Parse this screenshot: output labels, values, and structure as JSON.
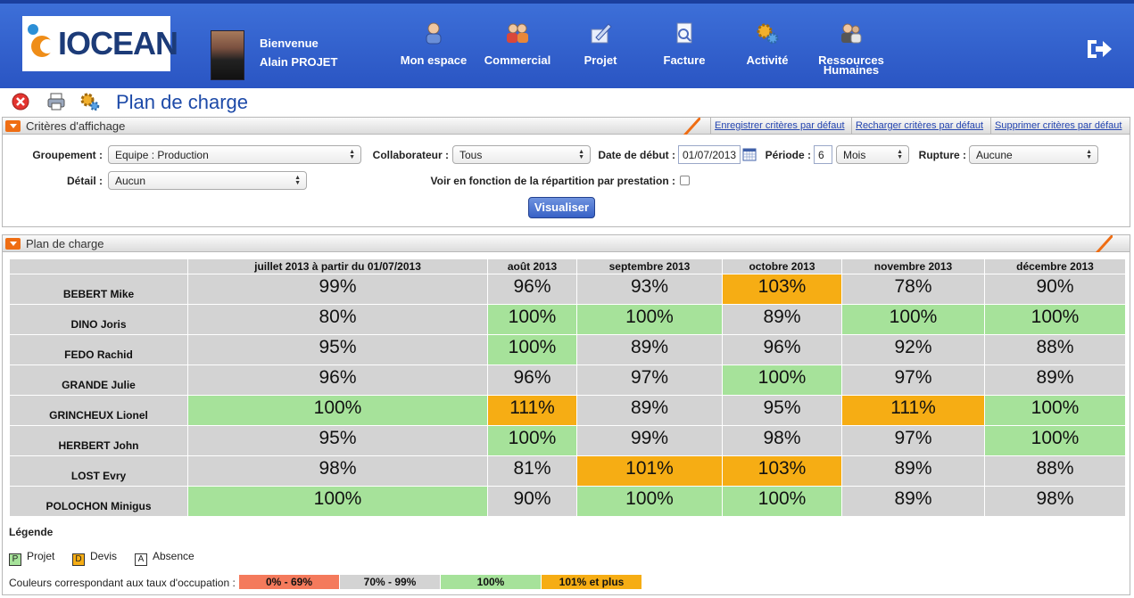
{
  "header": {
    "logo_text": "IOCEAN",
    "welcome": "Bienvenue",
    "user_name": "Alain PROJET",
    "nav": [
      {
        "label": "Mon espace",
        "icon": "person-icon"
      },
      {
        "label": "Commercial",
        "icon": "people-icon"
      },
      {
        "label": "Projet",
        "icon": "pen-icon"
      },
      {
        "label": "Facture",
        "icon": "invoice-icon"
      },
      {
        "label": "Activité",
        "icon": "gears-icon"
      },
      {
        "label": "Ressources",
        "label2": "Humaines",
        "icon": "hr-icon"
      }
    ],
    "logout_icon": "logout-icon"
  },
  "page_title": "Plan de charge",
  "criteria": {
    "title": "Critères d'affichage",
    "links": [
      "Enregistrer critères par défaut",
      "Recharger critères par défaut",
      "Supprimer critères par défaut"
    ],
    "groupement_label": "Groupement :",
    "groupement_value": "Equipe : Production",
    "collaborateur_label": "Collaborateur :",
    "collaborateur_value": "Tous",
    "date_label": "Date de début :",
    "date_value": "01/07/2013",
    "periode_label": "Période :",
    "periode_value": "6",
    "periode_unit": "Mois",
    "rupture_label": "Rupture :",
    "rupture_value": "Aucune",
    "detail_label": "Détail :",
    "detail_value": "Aucun",
    "repartition_label": "Voir en fonction de la répartition par prestation :",
    "button": "Visualiser"
  },
  "plan": {
    "title": "Plan de charge",
    "columns": [
      "juillet 2013 à partir du 01/07/2013",
      "août 2013",
      "septembre 2013",
      "octobre 2013",
      "novembre 2013",
      "décembre 2013"
    ],
    "rows": [
      {
        "name": "BEBERT Mike",
        "values": [
          "99%",
          "96%",
          "93%",
          "103%",
          "78%",
          "90%"
        ]
      },
      {
        "name": "DINO Joris",
        "values": [
          "80%",
          "100%",
          "100%",
          "89%",
          "100%",
          "100%"
        ]
      },
      {
        "name": "FEDO Rachid",
        "values": [
          "95%",
          "100%",
          "89%",
          "96%",
          "92%",
          "88%"
        ]
      },
      {
        "name": "GRANDE Julie",
        "values": [
          "96%",
          "96%",
          "97%",
          "100%",
          "97%",
          "89%"
        ]
      },
      {
        "name": "GRINCHEUX Lionel",
        "values": [
          "100%",
          "111%",
          "89%",
          "95%",
          "111%",
          "100%"
        ]
      },
      {
        "name": "HERBERT John",
        "values": [
          "95%",
          "100%",
          "99%",
          "98%",
          "97%",
          "100%"
        ]
      },
      {
        "name": "LOST Evry",
        "values": [
          "98%",
          "81%",
          "101%",
          "103%",
          "89%",
          "88%"
        ]
      },
      {
        "name": "POLOCHON Minigus",
        "values": [
          "100%",
          "90%",
          "100%",
          "100%",
          "89%",
          "98%"
        ]
      }
    ]
  },
  "legend": {
    "title": "Légende",
    "types": [
      {
        "letter": "P",
        "label": "Projet",
        "color": "#a6e29a"
      },
      {
        "letter": "D",
        "label": "Devis",
        "color": "#f6ad14"
      },
      {
        "letter": "A",
        "label": "Absence",
        "color": "#ffffff"
      }
    ],
    "occupation_label": "Couleurs correspondant aux taux d'occupation :",
    "ranges": [
      {
        "label": "0% - 69%",
        "color": "#f47a5c"
      },
      {
        "label": "70% - 99%",
        "color": "#d3d3d3"
      },
      {
        "label": "100%",
        "color": "#a6e29a"
      },
      {
        "label": "101% et plus",
        "color": "#f6ad14"
      }
    ]
  }
}
